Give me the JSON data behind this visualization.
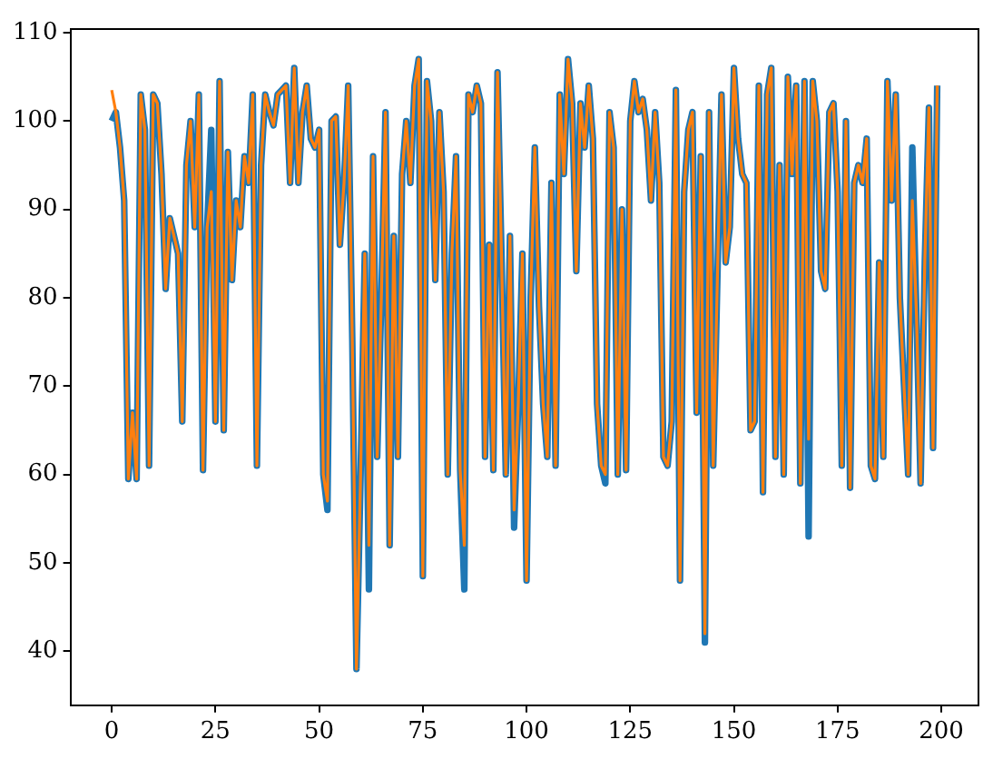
{
  "chart_data": {
    "type": "line",
    "x": [
      0,
      1,
      2,
      3,
      4,
      5,
      6,
      7,
      8,
      9,
      10,
      11,
      12,
      13,
      14,
      15,
      16,
      17,
      18,
      19,
      20,
      21,
      22,
      23,
      24,
      25,
      26,
      27,
      28,
      29,
      30,
      31,
      32,
      33,
      34,
      35,
      36,
      37,
      38,
      39,
      40,
      41,
      42,
      43,
      44,
      45,
      46,
      47,
      48,
      49,
      50,
      51,
      52,
      53,
      54,
      55,
      56,
      57,
      58,
      59,
      60,
      61,
      62,
      63,
      64,
      65,
      66,
      67,
      68,
      69,
      70,
      71,
      72,
      73,
      74,
      75,
      76,
      77,
      78,
      79,
      80,
      81,
      82,
      83,
      84,
      85,
      86,
      87,
      88,
      89,
      90,
      91,
      92,
      93,
      94,
      95,
      96,
      97,
      98,
      99,
      100,
      101,
      102,
      103,
      104,
      105,
      106,
      107,
      108,
      109,
      110,
      111,
      112,
      113,
      114,
      115,
      116,
      117,
      118,
      119,
      120,
      121,
      122,
      123,
      124,
      125,
      126,
      127,
      128,
      129,
      130,
      131,
      132,
      133,
      134,
      135,
      136,
      137,
      138,
      139,
      140,
      141,
      142,
      143,
      144,
      145,
      146,
      147,
      148,
      149,
      150,
      151,
      152,
      153,
      154,
      155,
      156,
      157,
      158,
      159,
      160,
      161,
      162,
      163,
      164,
      165,
      166,
      167,
      168,
      169,
      170,
      171,
      172,
      173,
      174,
      175,
      176,
      177,
      178,
      179,
      180,
      181,
      182,
      183,
      184,
      185,
      186,
      187,
      188,
      189,
      190,
      191,
      192,
      193,
      194,
      195,
      196,
      197,
      198,
      199
    ],
    "series": [
      {
        "color": "#1f77b4",
        "values": [
          100,
          101,
          97,
          91,
          59.5,
          67,
          59.5,
          103,
          99,
          61,
          103,
          102,
          94,
          81,
          89,
          87,
          85,
          66,
          95,
          100,
          88,
          103,
          60.5,
          88,
          99,
          66,
          104.5,
          65,
          96.5,
          82,
          91,
          88,
          96,
          93,
          103,
          61,
          95,
          103,
          101,
          99.5,
          103,
          103.5,
          104,
          93,
          106,
          93,
          101,
          104,
          98,
          97,
          99,
          60,
          56,
          100,
          100.5,
          86,
          93,
          104,
          75,
          38,
          60,
          85,
          47,
          96,
          62,
          80,
          101,
          52,
          87,
          62,
          94,
          100,
          93,
          104,
          107,
          48.5,
          104.5,
          100,
          82,
          101,
          92,
          60,
          85,
          96,
          60.5,
          47,
          103,
          101,
          104,
          102,
          62,
          86,
          60.5,
          105.5,
          84,
          60,
          87,
          54,
          68,
          85,
          48,
          80,
          97,
          79,
          68,
          62,
          93,
          61,
          103,
          94,
          107,
          102,
          83,
          102,
          97,
          104,
          98,
          68,
          61,
          59,
          101,
          97,
          60,
          90,
          60.5,
          100,
          104.5,
          101,
          102.5,
          99,
          91,
          101,
          93,
          62,
          61,
          66,
          103.5,
          48,
          92,
          99,
          101,
          67,
          96,
          41,
          101,
          61,
          82,
          103,
          84,
          88,
          106,
          98,
          94,
          93,
          65,
          66,
          104,
          58,
          103,
          106,
          62,
          95,
          60,
          105,
          94,
          104,
          59,
          104.5,
          53,
          104.5,
          100,
          83,
          81,
          101,
          102,
          92,
          61,
          100,
          58.5,
          93,
          95,
          93,
          98,
          61,
          59.5,
          84,
          62,
          104.5,
          91,
          103,
          80,
          70,
          60,
          97,
          78,
          59,
          84,
          101.5,
          63,
          104
        ]
      },
      {
        "color": "#ff7f0e",
        "values": [
          103.5,
          101,
          97,
          91,
          59.5,
          67,
          59.5,
          103,
          99,
          61,
          103,
          102,
          94,
          81,
          89,
          87,
          85,
          66,
          95,
          100,
          88,
          103,
          60.5,
          88,
          92,
          66,
          104.5,
          65,
          96.5,
          82,
          91,
          88,
          96,
          93,
          103,
          61,
          95,
          103,
          101,
          99.5,
          103,
          103.5,
          104,
          93,
          106,
          93,
          101,
          104,
          98,
          97,
          99,
          60,
          57,
          100,
          100.5,
          86,
          93,
          104,
          75,
          38,
          60,
          85,
          52,
          96,
          62,
          80,
          101,
          52,
          87,
          62,
          94,
          100,
          93,
          104,
          107,
          48.5,
          104.5,
          100,
          82,
          101,
          92,
          60,
          85,
          96,
          60.5,
          52,
          103,
          101,
          104,
          102,
          62,
          86,
          60.5,
          105.5,
          84,
          60,
          87,
          56,
          68,
          85,
          48,
          80,
          97,
          79,
          68,
          62,
          93,
          61,
          103,
          94,
          107,
          102,
          83,
          102,
          97,
          104,
          98,
          68,
          61,
          60,
          101,
          97,
          60,
          90,
          60.5,
          100,
          104.5,
          101,
          102.5,
          99,
          91,
          101,
          93,
          62,
          61,
          66,
          103.5,
          48,
          92,
          99,
          101,
          67,
          96,
          42,
          101,
          61,
          82,
          103,
          84,
          88,
          106,
          98,
          94,
          93,
          65,
          66,
          104,
          58,
          103,
          106,
          62,
          95,
          60,
          105,
          94,
          104,
          59,
          104.5,
          64,
          104.5,
          100,
          83,
          81,
          101,
          102,
          92,
          61,
          100,
          58.5,
          93,
          95,
          93,
          98,
          61,
          59.5,
          84,
          62,
          104.5,
          91,
          103,
          80,
          70,
          60,
          91,
          78,
          59,
          84,
          101.5,
          63,
          104
        ]
      }
    ],
    "xlim": [
      -9.95,
      208.95
    ],
    "ylim": [
      33.9,
      110.4
    ],
    "xticks": [
      0,
      25,
      50,
      75,
      100,
      125,
      150,
      175,
      200
    ],
    "yticks": [
      40,
      50,
      60,
      70,
      80,
      90,
      100,
      110
    ],
    "grid": false,
    "legend": false,
    "marker": "none",
    "line_style": "solid"
  }
}
